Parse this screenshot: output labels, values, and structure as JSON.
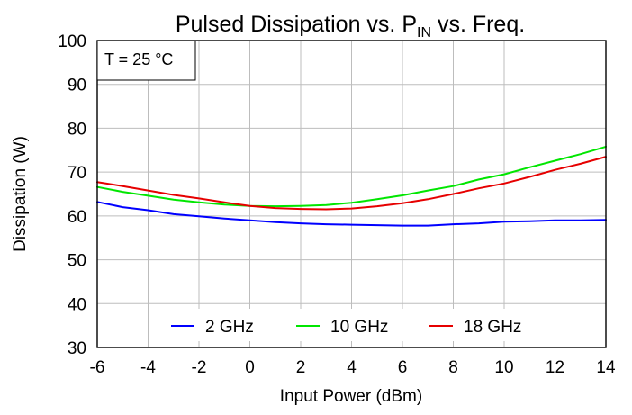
{
  "chart_data": {
    "type": "line",
    "title": {
      "prefix": "Pulsed Dissipation vs. P",
      "subscript": "IN",
      "suffix": " vs. Freq."
    },
    "xlabel": "Input Power (dBm)",
    "ylabel": "Dissipation (W)",
    "xlim": [
      -6,
      14
    ],
    "ylim": [
      30,
      100
    ],
    "xticks": [
      -6,
      -4,
      -2,
      0,
      2,
      4,
      6,
      8,
      10,
      12,
      14
    ],
    "yticks": [
      30,
      40,
      50,
      60,
      70,
      80,
      90,
      100
    ],
    "grid": true,
    "legend_position": "bottom-center",
    "annotation": "T = 25 °C",
    "x": [
      -6,
      -5,
      -4,
      -3,
      -2,
      -1,
      0,
      1,
      2,
      3,
      4,
      5,
      6,
      7,
      8,
      9,
      10,
      11,
      12,
      13,
      14
    ],
    "series": [
      {
        "name": "2 GHz",
        "color": "#0000ff",
        "values": [
          63.2,
          62.0,
          61.3,
          60.4,
          59.9,
          59.4,
          59.0,
          58.6,
          58.3,
          58.1,
          58.0,
          57.9,
          57.8,
          57.8,
          58.1,
          58.3,
          58.7,
          58.8,
          59.0,
          59.0,
          59.1
        ]
      },
      {
        "name": "10 GHz",
        "color": "#00e600",
        "values": [
          66.6,
          65.5,
          64.6,
          63.7,
          63.1,
          62.6,
          62.3,
          62.2,
          62.3,
          62.5,
          63.0,
          63.8,
          64.7,
          65.8,
          66.8,
          68.3,
          69.5,
          71.1,
          72.6,
          74.1,
          75.8
        ]
      },
      {
        "name": "18 GHz",
        "color": "#e60000",
        "values": [
          67.7,
          66.8,
          65.8,
          64.8,
          64.0,
          63.1,
          62.3,
          61.8,
          61.6,
          61.5,
          61.7,
          62.2,
          62.9,
          63.8,
          65.0,
          66.3,
          67.4,
          68.9,
          70.5,
          71.9,
          73.5
        ]
      }
    ]
  }
}
